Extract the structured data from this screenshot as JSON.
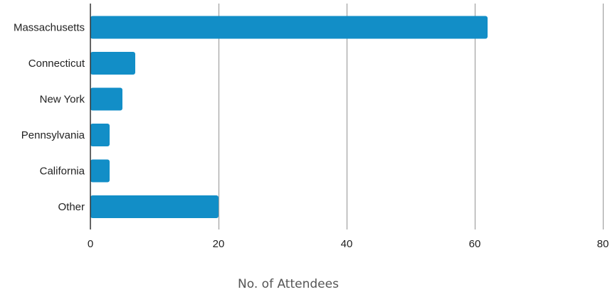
{
  "chart_data": {
    "type": "bar",
    "orientation": "horizontal",
    "categories": [
      "Massachusetts",
      "Connecticut",
      "New York",
      "Pennsylvania",
      "California",
      "Other"
    ],
    "values": [
      62,
      7,
      5,
      3,
      3,
      20
    ],
    "xlabel": "No. of Attendees",
    "ylabel": "",
    "title": "",
    "xlim": [
      0,
      80
    ],
    "xticks": [
      0,
      20,
      40,
      60,
      80
    ],
    "grid": "vertical",
    "legend": "none",
    "bar_color": "#128ec7",
    "grid_color": "#a6a6a6",
    "axis_color": "#333333"
  }
}
